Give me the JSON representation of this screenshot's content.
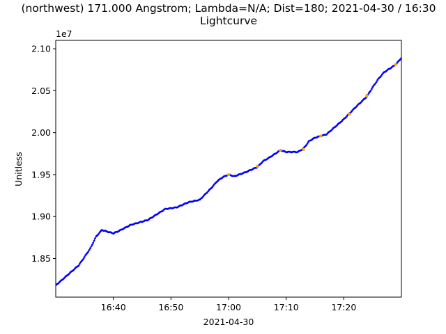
{
  "chart_data": {
    "type": "scatter",
    "title_line1": "(northwest) 171.000 Angstrom; Lambda=N/A; Dist=180; 2021-04-30 / 16:30",
    "title_line2": "Lightcurve",
    "xlabel": "2021-04-30",
    "ylabel": "Unitless",
    "y_offset_label": "1e7",
    "xlim": [
      "16:30",
      "17:30"
    ],
    "ylim": [
      18040000,
      21100000
    ],
    "x_ticks": [
      "16:40",
      "16:50",
      "17:00",
      "17:10",
      "17:20"
    ],
    "y_ticks": [
      "1.85",
      "1.90",
      "1.95",
      "2.00",
      "2.05",
      "2.10"
    ],
    "grid": false,
    "colors": {
      "series": "#0000ff",
      "highlight": "#ffa500"
    },
    "series": [
      {
        "values_note": "",
        "x": [
          "16:30",
          "16:32",
          "16:34",
          "16:36",
          "16:37",
          "16:38",
          "16:39",
          "16:40",
          "16:41",
          "16:43",
          "16:46",
          "16:49",
          "16:51",
          "16:53",
          "16:55",
          "16:57",
          "16:58",
          "16:59",
          "17:00",
          "17:01",
          "17:03",
          "17:05",
          "17:06",
          "17:07",
          "17:09",
          "17:10",
          "17:12",
          "17:13",
          "17:14",
          "17:15",
          "17:17",
          "17:18",
          "17:20",
          "17:22",
          "17:24",
          "17:25",
          "17:26",
          "17:27",
          "17:29",
          "17:30"
        ],
        "values": [
          18180000,
          18300000,
          18420000,
          18620000,
          18760000,
          18840000,
          18820000,
          18800000,
          18830000,
          18900000,
          18960000,
          19090000,
          19110000,
          19170000,
          19200000,
          19340000,
          19420000,
          19470000,
          19500000,
          19480000,
          19530000,
          19590000,
          19660000,
          19700000,
          19790000,
          19770000,
          19770000,
          19810000,
          19900000,
          19940000,
          19980000,
          20040000,
          20160000,
          20300000,
          20430000,
          20540000,
          20640000,
          20720000,
          20810000,
          20890000
        ]
      }
    ],
    "highlighted_points": {
      "x": [
        "17:00",
        "17:05",
        "17:09",
        "17:13",
        "17:16",
        "17:21",
        "17:24",
        "17:29"
      ],
      "values": [
        19500000,
        19600000,
        19790000,
        19800000,
        19960000,
        20220000,
        20440000,
        20810000
      ]
    }
  }
}
